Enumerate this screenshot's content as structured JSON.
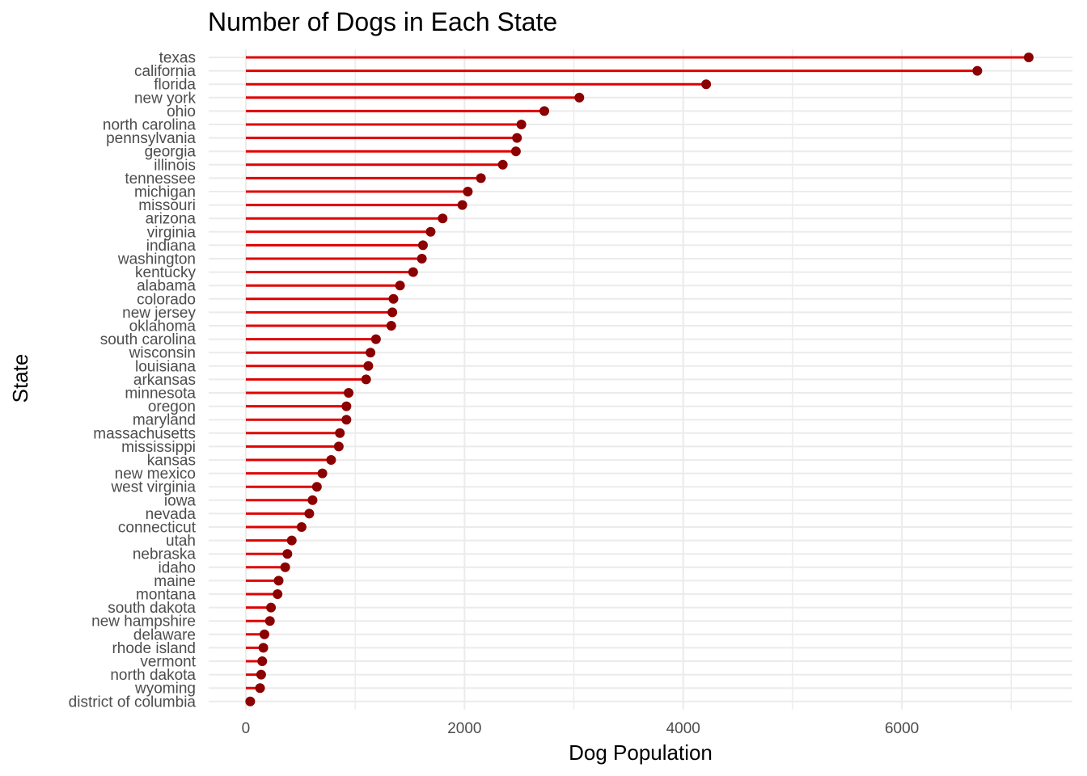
{
  "chart_data": {
    "type": "lollipop",
    "title": "Number of Dogs in Each State",
    "xlabel": "Dog Population",
    "ylabel": "State",
    "xlim": [
      -340,
      7560
    ],
    "x_ticks": [
      0,
      2000,
      4000,
      6000
    ],
    "x_tick_labels": [
      "0",
      "2000",
      "4000",
      "6000"
    ],
    "grid": true,
    "legend": "none",
    "colors": {
      "stem": "#e00000",
      "point": "#8b0000",
      "grid": "#ebebeb"
    },
    "categories": [
      "texas",
      "california",
      "florida",
      "new york",
      "ohio",
      "north carolina",
      "pennsylvania",
      "georgia",
      "illinois",
      "tennessee",
      "michigan",
      "missouri",
      "arizona",
      "virginia",
      "indiana",
      "washington",
      "kentucky",
      "alabama",
      "colorado",
      "new jersey",
      "oklahoma",
      "south carolina",
      "wisconsin",
      "louisiana",
      "arkansas",
      "minnesota",
      "oregon",
      "maryland",
      "massachusetts",
      "mississippi",
      "kansas",
      "new mexico",
      "west virginia",
      "iowa",
      "nevada",
      "connecticut",
      "utah",
      "nebraska",
      "idaho",
      "maine",
      "montana",
      "south dakota",
      "new hampshire",
      "delaware",
      "rhode island",
      "vermont",
      "north dakota",
      "wyoming",
      "district of columbia"
    ],
    "values": [
      7160,
      6690,
      4210,
      3050,
      2730,
      2520,
      2480,
      2470,
      2350,
      2150,
      2030,
      1980,
      1800,
      1690,
      1620,
      1610,
      1530,
      1410,
      1350,
      1340,
      1330,
      1190,
      1140,
      1120,
      1100,
      940,
      920,
      920,
      860,
      850,
      780,
      700,
      650,
      610,
      580,
      510,
      420,
      380,
      360,
      300,
      290,
      230,
      220,
      170,
      160,
      150,
      140,
      130,
      40
    ]
  }
}
